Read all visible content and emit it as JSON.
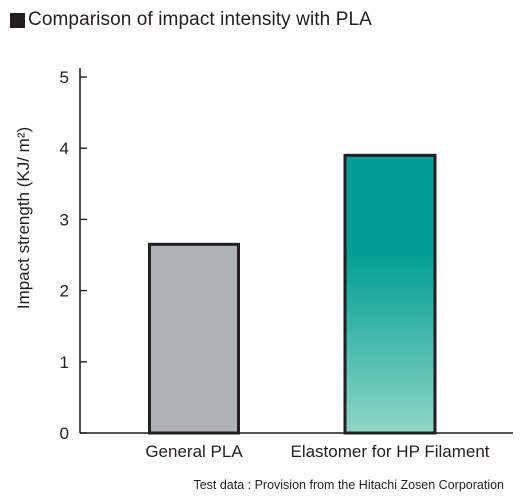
{
  "chart_data": {
    "type": "bar",
    "title": "Comparison of impact intensity with PLA",
    "ylabel": "Impact strength (KJ/ m²)",
    "xlabel": "",
    "categories": [
      "General PLA",
      "Elastomer for HP Filament"
    ],
    "values": [
      2.65,
      3.9
    ],
    "ylim": [
      0,
      5
    ],
    "yticks": [
      "0",
      "1",
      "2",
      "3",
      "4",
      "5"
    ],
    "grid": false,
    "bar_styles": [
      {
        "fill": "#b1b2b6"
      },
      {
        "fill_top": "#009e96",
        "fill_bottom": "#8fd6c4"
      }
    ],
    "bar_outline": "#231f20",
    "footnote": "Test data : Provision from the Hitachi Zosen Corporation"
  }
}
